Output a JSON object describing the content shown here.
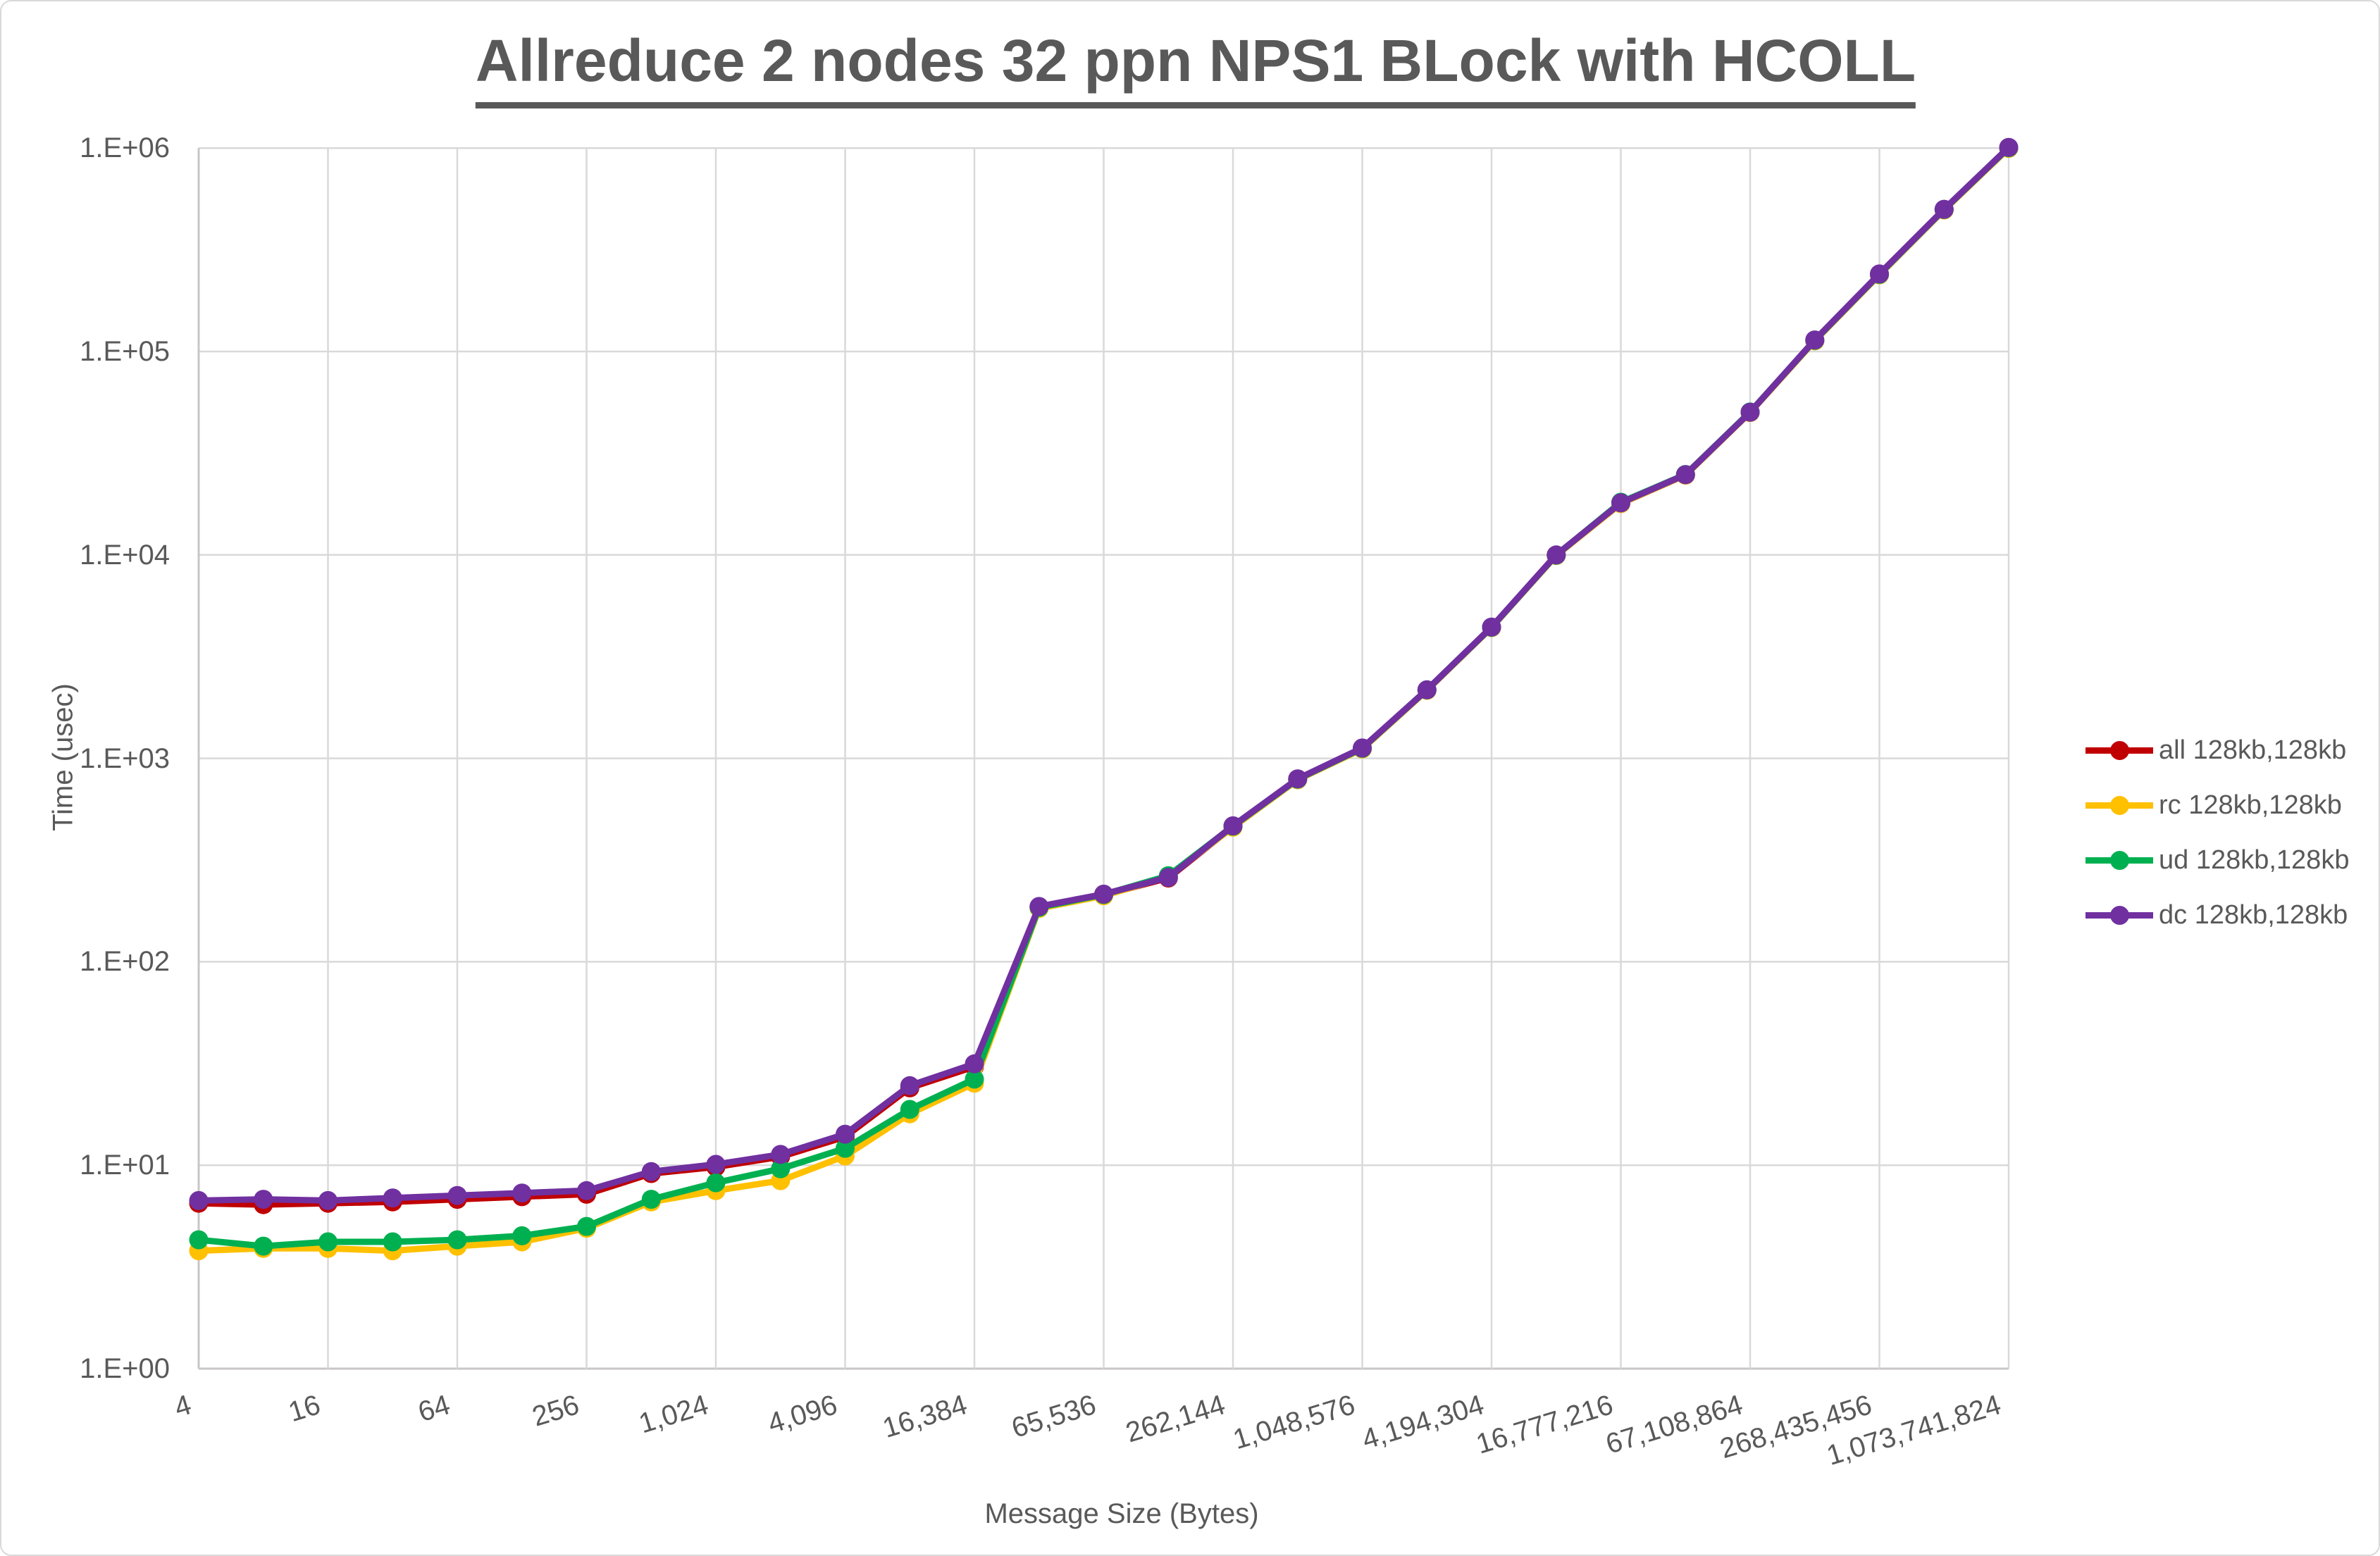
{
  "title": "Allreduce 2 nodes 32 ppn NPS1 BLock with HCOLL",
  "colors": {
    "text": "#595959",
    "gridline": "#d9d9d9",
    "axis_line": "#c8c6c6",
    "background": "#ffffff",
    "series_all": "#C00000",
    "series_rc": "#FFC000",
    "series_ud": "#00B050",
    "series_dc": "#7030A0"
  },
  "chart_data": {
    "type": "line",
    "title": "Allreduce 2 nodes 32 ppn NPS1 BLock with HCOLL",
    "xlabel": "Message Size (Bytes)",
    "ylabel": "Time (usec)",
    "x_scale": "log2",
    "y_scale": "log10",
    "ylim": [
      1,
      1000000
    ],
    "grid": true,
    "legend_position": "right",
    "y_tick_labels": [
      "1.E+00",
      "1.E+01",
      "1.E+02",
      "1.E+03",
      "1.E+04",
      "1.E+05",
      "1.E+06"
    ],
    "x_tick_labels": [
      "4",
      "16",
      "64",
      "256",
      "1,024",
      "4,096",
      "16,384",
      "65,536",
      "262,144",
      "1,048,576",
      "4,194,304",
      "16,777,216",
      "67,108,864",
      "268,435,456",
      "1,073,741,824"
    ],
    "x": [
      4,
      8,
      16,
      32,
      64,
      128,
      256,
      512,
      1024,
      2048,
      4096,
      8192,
      16384,
      32768,
      65536,
      131072,
      262144,
      524288,
      1048576,
      2097152,
      4194304,
      8388608,
      16777216,
      33554432,
      67108864,
      134217728,
      268435456,
      536870912,
      1073741824
    ],
    "series": [
      {
        "name": "all 128kb,128kb",
        "color": "#C00000",
        "values": [
          6.5,
          6.4,
          6.5,
          6.6,
          6.8,
          7.0,
          7.2,
          9.1,
          9.8,
          11.0,
          13.8,
          24.0,
          30.5,
          186,
          213,
          258,
          462,
          788,
          1115,
          2165,
          4400,
          9950,
          17900,
          24700,
          50200,
          113000,
          238500,
          497000,
          1000000
        ]
      },
      {
        "name": "rc 128kb,128kb",
        "color": "#FFC000",
        "values": [
          3.8,
          3.9,
          3.9,
          3.8,
          4.0,
          4.2,
          4.9,
          6.6,
          7.5,
          8.4,
          11.1,
          17.9,
          25.3,
          183,
          211,
          262,
          459,
          785,
          1112,
          2160,
          4395,
          9940,
          17880,
          24680,
          50150,
          112800,
          238000,
          496000,
          997000
        ]
      },
      {
        "name": "ud 128kb,128kb",
        "color": "#00B050",
        "values": [
          4.3,
          4.0,
          4.2,
          4.2,
          4.3,
          4.5,
          5.0,
          6.8,
          8.2,
          9.6,
          12.1,
          18.8,
          26.5,
          185,
          214,
          265,
          464,
          790,
          1120,
          2170,
          4410,
          9970,
          18150,
          24850,
          50400,
          113500,
          239500,
          499000,
          1004000
        ]
      },
      {
        "name": "dc 128kb,128kb",
        "color": "#7030A0",
        "values": [
          6.7,
          6.8,
          6.7,
          6.9,
          7.1,
          7.3,
          7.5,
          9.3,
          10.1,
          11.3,
          14.2,
          24.6,
          31.5,
          187,
          215,
          260,
          466,
          793,
          1124,
          2173,
          4420,
          10000,
          18030,
          24800,
          50300,
          114000,
          240500,
          500000,
          1008000
        ]
      }
    ]
  }
}
